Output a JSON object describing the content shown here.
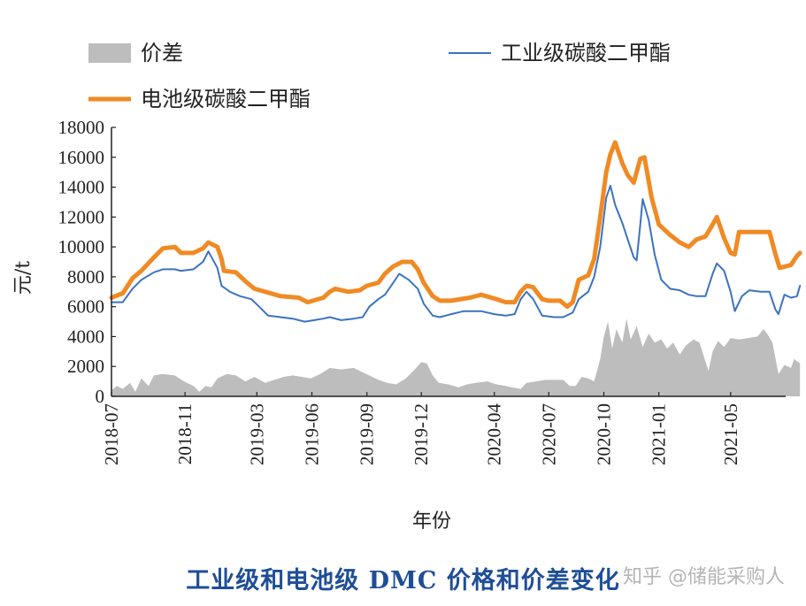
{
  "caption": "工业级和电池级 DMC 价格和价差变化",
  "watermark": "知乎 @储能采购人",
  "colors": {
    "spread": "#bdbdbd",
    "industrial": "#3b73c0",
    "battery": "#f08a24",
    "caption": "#1f4e96"
  },
  "chart_data": {
    "type": "line",
    "xlabel": "年份",
    "ylabel": "元/t",
    "ylim": [
      0,
      18000
    ],
    "yticks": [
      0,
      2000,
      4000,
      6000,
      8000,
      10000,
      12000,
      14000,
      16000,
      18000
    ],
    "xticks": [
      "2018-07",
      "2018-11",
      "2019-03",
      "2019-06",
      "2019-09",
      "2019-12",
      "2020-04",
      "2020-07",
      "2020-10",
      "2021-01",
      "2021-05"
    ],
    "xlim": [
      "2018-07-01",
      "2021-08-01"
    ],
    "legend": {
      "position": "top",
      "entries": [
        "价差",
        "工业级碳酸二甲酯",
        "电池级碳酸二甲酯"
      ]
    },
    "series": [
      {
        "name": "电池级碳酸二甲酯",
        "style": "line",
        "color": "#f08a24",
        "points": [
          [
            "2018-07-01",
            6600
          ],
          [
            "2018-07-20",
            6900
          ],
          [
            "2018-08-05",
            7900
          ],
          [
            "2018-08-20",
            8400
          ],
          [
            "2018-09-10",
            9300
          ],
          [
            "2018-09-25",
            9900
          ],
          [
            "2018-10-15",
            10000
          ],
          [
            "2018-10-25",
            9600
          ],
          [
            "2018-11-15",
            9600
          ],
          [
            "2018-12-01",
            9900
          ],
          [
            "2018-12-10",
            10300
          ],
          [
            "2018-12-25",
            10000
          ],
          [
            "2019-01-01",
            9200
          ],
          [
            "2019-01-05",
            8400
          ],
          [
            "2019-01-25",
            8300
          ],
          [
            "2019-02-10",
            7700
          ],
          [
            "2019-02-25",
            7200
          ],
          [
            "2019-03-15",
            7000
          ],
          [
            "2019-04-10",
            6700
          ],
          [
            "2019-05-10",
            6600
          ],
          [
            "2019-05-25",
            6300
          ],
          [
            "2019-06-20",
            6600
          ],
          [
            "2019-07-01",
            7000
          ],
          [
            "2019-07-10",
            7200
          ],
          [
            "2019-08-01",
            7000
          ],
          [
            "2019-08-20",
            7100
          ],
          [
            "2019-09-01",
            7400
          ],
          [
            "2019-09-20",
            7600
          ],
          [
            "2019-10-01",
            8200
          ],
          [
            "2019-10-15",
            8700
          ],
          [
            "2019-10-30",
            9000
          ],
          [
            "2019-11-15",
            9000
          ],
          [
            "2019-11-25",
            8500
          ],
          [
            "2019-12-05",
            7600
          ],
          [
            "2019-12-20",
            6700
          ],
          [
            "2020-01-01",
            6400
          ],
          [
            "2020-01-20",
            6400
          ],
          [
            "2020-02-20",
            6600
          ],
          [
            "2020-03-10",
            6800
          ],
          [
            "2020-04-05",
            6500
          ],
          [
            "2020-04-20",
            6300
          ],
          [
            "2020-05-05",
            6300
          ],
          [
            "2020-05-15",
            7000
          ],
          [
            "2020-05-25",
            7400
          ],
          [
            "2020-06-05",
            7300
          ],
          [
            "2020-06-20",
            6500
          ],
          [
            "2020-07-01",
            6400
          ],
          [
            "2020-07-20",
            6400
          ],
          [
            "2020-08-01",
            6000
          ],
          [
            "2020-08-10",
            6300
          ],
          [
            "2020-08-20",
            7800
          ],
          [
            "2020-09-05",
            8100
          ],
          [
            "2020-09-15",
            9200
          ],
          [
            "2020-09-25",
            12000
          ],
          [
            "2020-10-05",
            15000
          ],
          [
            "2020-10-12",
            16200
          ],
          [
            "2020-10-20",
            17000
          ],
          [
            "2020-11-01",
            15600
          ],
          [
            "2020-11-10",
            14800
          ],
          [
            "2020-11-20",
            14300
          ],
          [
            "2020-12-01",
            15900
          ],
          [
            "2020-12-08",
            16000
          ],
          [
            "2020-12-20",
            13300
          ],
          [
            "2021-01-01",
            11500
          ],
          [
            "2021-01-20",
            10800
          ],
          [
            "2021-02-05",
            10300
          ],
          [
            "2021-02-20",
            10000
          ],
          [
            "2021-03-05",
            10500
          ],
          [
            "2021-03-20",
            10700
          ],
          [
            "2021-04-01",
            11500
          ],
          [
            "2021-04-08",
            12000
          ],
          [
            "2021-04-20",
            10600
          ],
          [
            "2021-05-01",
            9600
          ],
          [
            "2021-05-08",
            9500
          ],
          [
            "2021-05-15",
            11000
          ],
          [
            "2021-06-15",
            11000
          ],
          [
            "2021-07-05",
            11000
          ],
          [
            "2021-07-15",
            9500
          ],
          [
            "2021-07-22",
            8600
          ],
          [
            "2021-08-01",
            8700
          ],
          [
            "2021-08-10",
            8800
          ],
          [
            "2021-08-20",
            9400
          ],
          [
            "2021-08-25",
            9600
          ]
        ]
      },
      {
        "name": "工业级碳酸二甲酯",
        "style": "line",
        "color": "#3b73c0",
        "points": [
          [
            "2018-07-01",
            6300
          ],
          [
            "2018-07-20",
            6300
          ],
          [
            "2018-08-05",
            7200
          ],
          [
            "2018-08-20",
            7800
          ],
          [
            "2018-09-10",
            8300
          ],
          [
            "2018-09-25",
            8500
          ],
          [
            "2018-10-15",
            8500
          ],
          [
            "2018-10-25",
            8400
          ],
          [
            "2018-11-15",
            8500
          ],
          [
            "2018-12-01",
            9000
          ],
          [
            "2018-12-10",
            9700
          ],
          [
            "2018-12-25",
            8600
          ],
          [
            "2019-01-01",
            7400
          ],
          [
            "2019-01-15",
            7000
          ],
          [
            "2019-02-01",
            6700
          ],
          [
            "2019-02-20",
            6500
          ],
          [
            "2019-03-05",
            6000
          ],
          [
            "2019-03-20",
            5400
          ],
          [
            "2019-04-10",
            5300
          ],
          [
            "2019-04-30",
            5200
          ],
          [
            "2019-05-20",
            5000
          ],
          [
            "2019-06-05",
            5100
          ],
          [
            "2019-06-20",
            5200
          ],
          [
            "2019-07-01",
            5300
          ],
          [
            "2019-07-20",
            5100
          ],
          [
            "2019-08-10",
            5200
          ],
          [
            "2019-08-25",
            5300
          ],
          [
            "2019-09-05",
            6000
          ],
          [
            "2019-09-20",
            6500
          ],
          [
            "2019-10-01",
            6800
          ],
          [
            "2019-10-15",
            7600
          ],
          [
            "2019-10-25",
            8200
          ],
          [
            "2019-11-10",
            7800
          ],
          [
            "2019-11-25",
            7200
          ],
          [
            "2019-12-05",
            6200
          ],
          [
            "2019-12-20",
            5400
          ],
          [
            "2020-01-01",
            5300
          ],
          [
            "2020-01-20",
            5500
          ],
          [
            "2020-02-10",
            5700
          ],
          [
            "2020-03-10",
            5700
          ],
          [
            "2020-04-01",
            5500
          ],
          [
            "2020-04-20",
            5400
          ],
          [
            "2020-05-05",
            5500
          ],
          [
            "2020-05-15",
            6500
          ],
          [
            "2020-05-25",
            7000
          ],
          [
            "2020-06-05",
            6500
          ],
          [
            "2020-06-20",
            5400
          ],
          [
            "2020-07-10",
            5300
          ],
          [
            "2020-07-25",
            5300
          ],
          [
            "2020-08-10",
            5600
          ],
          [
            "2020-08-20",
            6500
          ],
          [
            "2020-09-05",
            7000
          ],
          [
            "2020-09-15",
            8000
          ],
          [
            "2020-09-25",
            10000
          ],
          [
            "2020-10-05",
            13300
          ],
          [
            "2020-10-12",
            14100
          ],
          [
            "2020-10-20",
            12800
          ],
          [
            "2020-11-01",
            11600
          ],
          [
            "2020-11-10",
            10500
          ],
          [
            "2020-11-20",
            9300
          ],
          [
            "2020-11-25",
            9100
          ],
          [
            "2020-12-01",
            11500
          ],
          [
            "2020-12-05",
            13200
          ],
          [
            "2020-12-15",
            11800
          ],
          [
            "2020-12-25",
            9500
          ],
          [
            "2021-01-05",
            7800
          ],
          [
            "2021-01-20",
            7200
          ],
          [
            "2021-02-05",
            7100
          ],
          [
            "2021-02-20",
            6800
          ],
          [
            "2021-03-05",
            6700
          ],
          [
            "2021-03-20",
            6700
          ],
          [
            "2021-04-01",
            8200
          ],
          [
            "2021-04-08",
            8900
          ],
          [
            "2021-04-20",
            8400
          ],
          [
            "2021-05-01",
            7000
          ],
          [
            "2021-05-08",
            5700
          ],
          [
            "2021-05-20",
            6700
          ],
          [
            "2021-06-01",
            7100
          ],
          [
            "2021-06-20",
            7000
          ],
          [
            "2021-07-05",
            7000
          ],
          [
            "2021-07-15",
            5800
          ],
          [
            "2021-07-20",
            5500
          ],
          [
            "2021-07-30",
            6800
          ],
          [
            "2021-08-10",
            6600
          ],
          [
            "2021-08-20",
            6700
          ],
          [
            "2021-08-25",
            7400
          ]
        ]
      },
      {
        "name": "价差",
        "style": "area",
        "color": "#bdbdbd",
        "points": [
          [
            "2018-07-01",
            400
          ],
          [
            "2018-07-10",
            700
          ],
          [
            "2018-07-20",
            500
          ],
          [
            "2018-08-01",
            900
          ],
          [
            "2018-08-10",
            300
          ],
          [
            "2018-08-20",
            1200
          ],
          [
            "2018-09-01",
            700
          ],
          [
            "2018-09-10",
            1400
          ],
          [
            "2018-09-25",
            1500
          ],
          [
            "2018-10-15",
            1400
          ],
          [
            "2018-10-30",
            1000
          ],
          [
            "2018-11-15",
            700
          ],
          [
            "2018-11-25",
            300
          ],
          [
            "2018-12-05",
            700
          ],
          [
            "2018-12-15",
            600
          ],
          [
            "2018-12-25",
            1200
          ],
          [
            "2019-01-10",
            1500
          ],
          [
            "2019-01-25",
            1400
          ],
          [
            "2019-02-10",
            1000
          ],
          [
            "2019-02-25",
            1300
          ],
          [
            "2019-03-15",
            900
          ],
          [
            "2019-03-30",
            1100
          ],
          [
            "2019-04-15",
            1300
          ],
          [
            "2019-04-30",
            1400
          ],
          [
            "2019-05-15",
            1300
          ],
          [
            "2019-05-30",
            1200
          ],
          [
            "2019-06-15",
            1500
          ],
          [
            "2019-07-01",
            1900
          ],
          [
            "2019-07-20",
            1800
          ],
          [
            "2019-08-10",
            1900
          ],
          [
            "2019-08-25",
            1600
          ],
          [
            "2019-09-05",
            1400
          ],
          [
            "2019-09-20",
            1100
          ],
          [
            "2019-10-05",
            900
          ],
          [
            "2019-10-20",
            800
          ],
          [
            "2019-11-05",
            1200
          ],
          [
            "2019-11-20",
            1800
          ],
          [
            "2019-12-01",
            2300
          ],
          [
            "2019-12-10",
            2200
          ],
          [
            "2019-12-20",
            1400
          ],
          [
            "2019-12-30",
            900
          ],
          [
            "2020-01-15",
            800
          ],
          [
            "2020-02-01",
            600
          ],
          [
            "2020-02-15",
            800
          ],
          [
            "2020-03-01",
            900
          ],
          [
            "2020-03-20",
            1000
          ],
          [
            "2020-04-05",
            800
          ],
          [
            "2020-04-20",
            700
          ],
          [
            "2020-05-01",
            600
          ],
          [
            "2020-05-15",
            500
          ],
          [
            "2020-05-25",
            900
          ],
          [
            "2020-06-10",
            1000
          ],
          [
            "2020-06-25",
            1100
          ],
          [
            "2020-07-10",
            1100
          ],
          [
            "2020-07-25",
            1100
          ],
          [
            "2020-08-05",
            700
          ],
          [
            "2020-08-15",
            700
          ],
          [
            "2020-08-25",
            1300
          ],
          [
            "2020-09-05",
            1200
          ],
          [
            "2020-09-15",
            1000
          ],
          [
            "2020-09-25",
            2500
          ],
          [
            "2020-10-01",
            4000
          ],
          [
            "2020-10-08",
            5000
          ],
          [
            "2020-10-15",
            3200
          ],
          [
            "2020-10-22",
            4500
          ],
          [
            "2020-11-01",
            3600
          ],
          [
            "2020-11-08",
            5200
          ],
          [
            "2020-11-15",
            3800
          ],
          [
            "2020-11-25",
            4700
          ],
          [
            "2020-12-05",
            3300
          ],
          [
            "2020-12-15",
            4200
          ],
          [
            "2020-12-25",
            3600
          ],
          [
            "2021-01-05",
            3800
          ],
          [
            "2021-01-15",
            3200
          ],
          [
            "2021-01-25",
            3600
          ],
          [
            "2021-02-05",
            2800
          ],
          [
            "2021-02-15",
            3400
          ],
          [
            "2021-02-28",
            3800
          ],
          [
            "2021-03-10",
            3600
          ],
          [
            "2021-03-25",
            1700
          ],
          [
            "2021-04-01",
            3000
          ],
          [
            "2021-04-10",
            3700
          ],
          [
            "2021-04-20",
            3300
          ],
          [
            "2021-05-01",
            3900
          ],
          [
            "2021-05-15",
            3800
          ],
          [
            "2021-05-30",
            3900
          ],
          [
            "2021-06-15",
            4000
          ],
          [
            "2021-06-25",
            4500
          ],
          [
            "2021-07-01",
            4200
          ],
          [
            "2021-07-10",
            3600
          ],
          [
            "2021-07-20",
            1500
          ],
          [
            "2021-07-30",
            2100
          ],
          [
            "2021-08-10",
            1900
          ],
          [
            "2021-08-15",
            2500
          ],
          [
            "2021-08-25",
            2200
          ]
        ]
      }
    ]
  }
}
